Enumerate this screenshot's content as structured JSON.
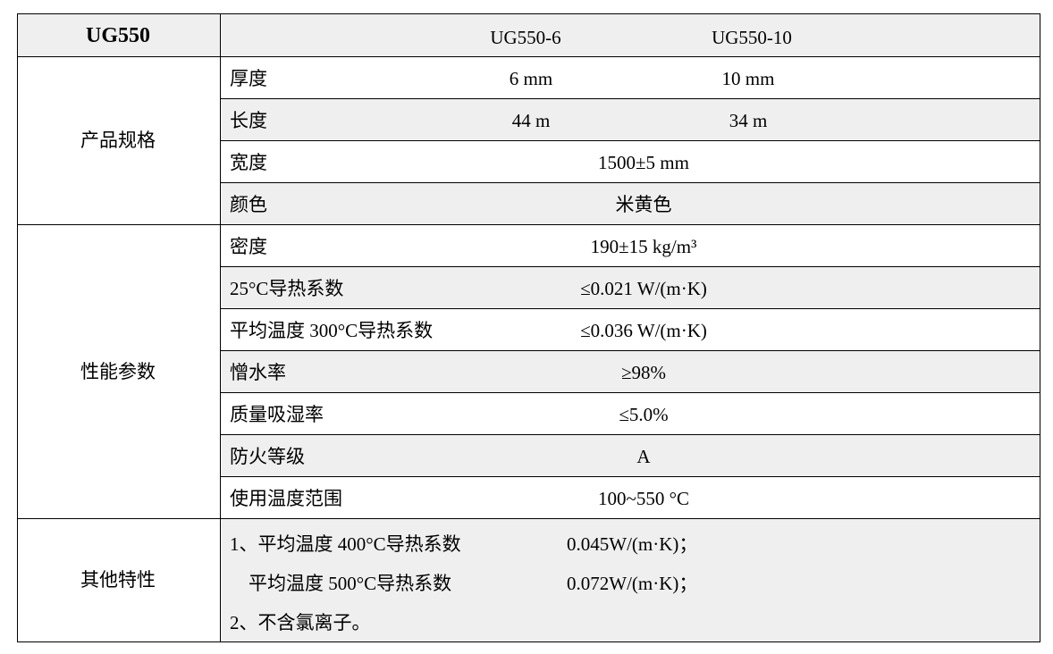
{
  "header": {
    "title": "UG550",
    "models": [
      "UG550-6",
      "UG550-10"
    ]
  },
  "groups": [
    {
      "label": "产品规格"
    },
    {
      "label": "性能参数"
    },
    {
      "label": "其他特性"
    }
  ],
  "rows": [
    {
      "label": "厚度",
      "values": [
        "6 mm",
        "10 mm"
      ]
    },
    {
      "label": "长度",
      "values": [
        "44 m",
        "34 m"
      ]
    },
    {
      "label": "宽度",
      "value": "1500±5 mm"
    },
    {
      "label": "颜色",
      "value": "米黄色"
    },
    {
      "label": "密度",
      "value": "190±15 kg/m³"
    },
    {
      "label": "25°C导热系数",
      "value": "≤0.021 W/(m·K)"
    },
    {
      "label": "平均温度 300°C导热系数",
      "value": "≤0.036 W/(m·K)"
    },
    {
      "label": "憎水率",
      "value": "≥98%"
    },
    {
      "label": "质量吸湿率",
      "value": "≤5.0%"
    },
    {
      "label": "防火等级",
      "value": "A"
    },
    {
      "label": "使用温度范围",
      "value": "100~550 °C"
    }
  ],
  "other": [
    {
      "label": "1、平均温度 400°C导热系数",
      "value": "0.045W/(m·K)；"
    },
    {
      "label": "　平均温度 500°C导热系数",
      "value": "0.072W/(m·K)；"
    },
    {
      "label": "2、不含氯离子。",
      "value": ""
    }
  ]
}
